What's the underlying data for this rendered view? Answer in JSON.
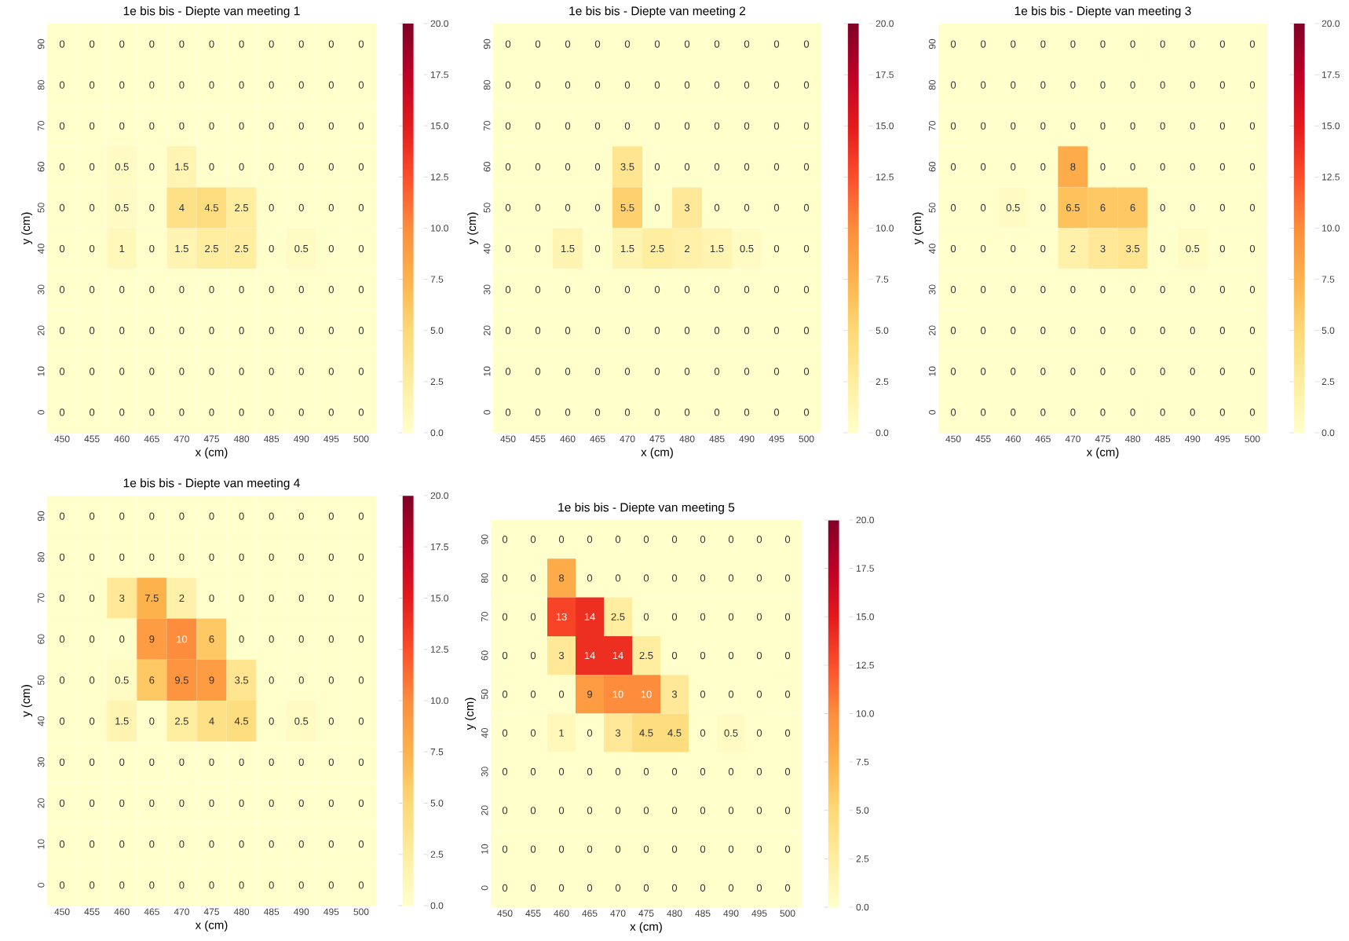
{
  "chart_data": [
    {
      "type": "heatmap",
      "title": "1e bis bis - Diepte van meeting 1",
      "xlabel": "x (cm)",
      "ylabel": "y (cm)",
      "categories": [
        "450",
        "455",
        "460",
        "465",
        "470",
        "475",
        "480",
        "485",
        "490",
        "495",
        "500"
      ],
      "y_categories": [
        "90",
        "80",
        "70",
        "60",
        "50",
        "40",
        "30",
        "20",
        "10",
        "0"
      ],
      "cells": [
        [
          0,
          0,
          0,
          0,
          0,
          0,
          0,
          0,
          0,
          0,
          0
        ],
        [
          0,
          0,
          0,
          0,
          0,
          0,
          0,
          0,
          0,
          0,
          0
        ],
        [
          0,
          0,
          0,
          0,
          0,
          0,
          0,
          0,
          0,
          0,
          0
        ],
        [
          0,
          0,
          0.5,
          0,
          1.5,
          0,
          0,
          0,
          0,
          0,
          0
        ],
        [
          0,
          0,
          0.5,
          0,
          4,
          4.5,
          2.5,
          0,
          0,
          0,
          0
        ],
        [
          0,
          0,
          1,
          0,
          1.5,
          2.5,
          2.5,
          0,
          0.5,
          0,
          0
        ],
        [
          0,
          0,
          0,
          0,
          0,
          0,
          0,
          0,
          0,
          0,
          0
        ],
        [
          0,
          0,
          0,
          0,
          0,
          0,
          0,
          0,
          0,
          0,
          0
        ],
        [
          0,
          0,
          0,
          0,
          0,
          0,
          0,
          0,
          0,
          0,
          0
        ],
        [
          0,
          0,
          0,
          0,
          0,
          0,
          0,
          0,
          0,
          0,
          0
        ]
      ],
      "clim": [
        0,
        20
      ],
      "cticks": [
        {
          "value": 0,
          "label": "0.0"
        },
        {
          "value": 2.5,
          "label": "2.5"
        },
        {
          "value": 5,
          "label": "5.0"
        },
        {
          "value": 7.5,
          "label": "7.5"
        },
        {
          "value": 10,
          "label": "10.0"
        },
        {
          "value": 12.5,
          "label": "12.5"
        },
        {
          "value": 15,
          "label": "15.0"
        },
        {
          "value": 17.5,
          "label": "17.5"
        },
        {
          "value": 20,
          "label": "20.0"
        }
      ],
      "data_labels": true
    },
    {
      "type": "heatmap",
      "title": "1e bis bis - Diepte van meeting 2",
      "xlabel": "x (cm)",
      "ylabel": "y (cm)",
      "categories": [
        "450",
        "455",
        "460",
        "465",
        "470",
        "475",
        "480",
        "485",
        "490",
        "495",
        "500"
      ],
      "y_categories": [
        "90",
        "80",
        "70",
        "60",
        "50",
        "40",
        "30",
        "20",
        "10",
        "0"
      ],
      "cells": [
        [
          0,
          0,
          0,
          0,
          0,
          0,
          0,
          0,
          0,
          0,
          0
        ],
        [
          0,
          0,
          0,
          0,
          0,
          0,
          0,
          0,
          0,
          0,
          0
        ],
        [
          0,
          0,
          0,
          0,
          0,
          0,
          0,
          0,
          0,
          0,
          0
        ],
        [
          0,
          0,
          0,
          0,
          3.5,
          0,
          0,
          0,
          0,
          0,
          0
        ],
        [
          0,
          0,
          0,
          0,
          5.5,
          0,
          3,
          0,
          0,
          0,
          0
        ],
        [
          0,
          0,
          1.5,
          0,
          1.5,
          2.5,
          2,
          1.5,
          0.5,
          0,
          0
        ],
        [
          0,
          0,
          0,
          0,
          0,
          0,
          0,
          0,
          0,
          0,
          0
        ],
        [
          0,
          0,
          0,
          0,
          0,
          0,
          0,
          0,
          0,
          0,
          0
        ],
        [
          0,
          0,
          0,
          0,
          0,
          0,
          0,
          0,
          0,
          0,
          0
        ],
        [
          0,
          0,
          0,
          0,
          0,
          0,
          0,
          0,
          0,
          0,
          0
        ]
      ],
      "clim": [
        0,
        20
      ],
      "cticks": [
        {
          "value": 0,
          "label": "0.0"
        },
        {
          "value": 2.5,
          "label": "2.5"
        },
        {
          "value": 5,
          "label": "5.0"
        },
        {
          "value": 7.5,
          "label": "7.5"
        },
        {
          "value": 10,
          "label": "10.0"
        },
        {
          "value": 12.5,
          "label": "12.5"
        },
        {
          "value": 15,
          "label": "15.0"
        },
        {
          "value": 17.5,
          "label": "17.5"
        },
        {
          "value": 20,
          "label": "20.0"
        }
      ],
      "data_labels": true
    },
    {
      "type": "heatmap",
      "title": "1e bis bis - Diepte van meeting 3",
      "xlabel": "x (cm)",
      "ylabel": "y (cm)",
      "categories": [
        "450",
        "455",
        "460",
        "465",
        "470",
        "475",
        "480",
        "485",
        "490",
        "495",
        "500"
      ],
      "y_categories": [
        "90",
        "80",
        "70",
        "60",
        "50",
        "40",
        "30",
        "20",
        "10",
        "0"
      ],
      "cells": [
        [
          0,
          0,
          0,
          0,
          0,
          0,
          0,
          0,
          0,
          0,
          0
        ],
        [
          0,
          0,
          0,
          0,
          0,
          0,
          0,
          0,
          0,
          0,
          0
        ],
        [
          0,
          0,
          0,
          0,
          0,
          0,
          0,
          0,
          0,
          0,
          0
        ],
        [
          0,
          0,
          0,
          0,
          8,
          0,
          0,
          0,
          0,
          0,
          0
        ],
        [
          0,
          0,
          0.5,
          0,
          6.5,
          6,
          6,
          0,
          0,
          0,
          0
        ],
        [
          0,
          0,
          0,
          0,
          2,
          3,
          3.5,
          0,
          0.5,
          0,
          0
        ],
        [
          0,
          0,
          0,
          0,
          0,
          0,
          0,
          0,
          0,
          0,
          0
        ],
        [
          0,
          0,
          0,
          0,
          0,
          0,
          0,
          0,
          0,
          0,
          0
        ],
        [
          0,
          0,
          0,
          0,
          0,
          0,
          0,
          0,
          0,
          0,
          0
        ],
        [
          0,
          0,
          0,
          0,
          0,
          0,
          0,
          0,
          0,
          0,
          0
        ]
      ],
      "clim": [
        0,
        20
      ],
      "cticks": [
        {
          "value": 0,
          "label": "0.0"
        },
        {
          "value": 2.5,
          "label": "2.5"
        },
        {
          "value": 5,
          "label": "5.0"
        },
        {
          "value": 7.5,
          "label": "7.5"
        },
        {
          "value": 10,
          "label": "10.0"
        },
        {
          "value": 12.5,
          "label": "12.5"
        },
        {
          "value": 15,
          "label": "15.0"
        },
        {
          "value": 17.5,
          "label": "17.5"
        },
        {
          "value": 20,
          "label": "20.0"
        }
      ],
      "data_labels": true
    },
    {
      "type": "heatmap",
      "title": "1e bis bis - Diepte van meeting 4",
      "xlabel": "x (cm)",
      "ylabel": "y (cm)",
      "categories": [
        "450",
        "455",
        "460",
        "465",
        "470",
        "475",
        "480",
        "485",
        "490",
        "495",
        "500"
      ],
      "y_categories": [
        "90",
        "80",
        "70",
        "60",
        "50",
        "40",
        "30",
        "20",
        "10",
        "0"
      ],
      "cells": [
        [
          0,
          0,
          0,
          0,
          0,
          0,
          0,
          0,
          0,
          0,
          0
        ],
        [
          0,
          0,
          0,
          0,
          0,
          0,
          0,
          0,
          0,
          0,
          0
        ],
        [
          0,
          0,
          3,
          7.5,
          2,
          0,
          0,
          0,
          0,
          0,
          0
        ],
        [
          0,
          0,
          0,
          9,
          10,
          6,
          0,
          0,
          0,
          0,
          0
        ],
        [
          0,
          0,
          0.5,
          6,
          9.5,
          9,
          3.5,
          0,
          0,
          0,
          0
        ],
        [
          0,
          0,
          1.5,
          0,
          2.5,
          4,
          4.5,
          0,
          0.5,
          0,
          0
        ],
        [
          0,
          0,
          0,
          0,
          0,
          0,
          0,
          0,
          0,
          0,
          0
        ],
        [
          0,
          0,
          0,
          0,
          0,
          0,
          0,
          0,
          0,
          0,
          0
        ],
        [
          0,
          0,
          0,
          0,
          0,
          0,
          0,
          0,
          0,
          0,
          0
        ],
        [
          0,
          0,
          0,
          0,
          0,
          0,
          0,
          0,
          0,
          0,
          0
        ]
      ],
      "clim": [
        0,
        20
      ],
      "cticks": [
        {
          "value": 0,
          "label": "0.0"
        },
        {
          "value": 2.5,
          "label": "2.5"
        },
        {
          "value": 5,
          "label": "5.0"
        },
        {
          "value": 7.5,
          "label": "7.5"
        },
        {
          "value": 10,
          "label": "10.0"
        },
        {
          "value": 12.5,
          "label": "12.5"
        },
        {
          "value": 15,
          "label": "15.0"
        },
        {
          "value": 17.5,
          "label": "17.5"
        },
        {
          "value": 20,
          "label": "20.0"
        }
      ],
      "data_labels": true
    },
    {
      "type": "heatmap",
      "title": "1e bis bis - Diepte van meeting 5",
      "xlabel": "x (cm)",
      "ylabel": "y (cm)",
      "categories": [
        "450",
        "455",
        "460",
        "465",
        "470",
        "475",
        "480",
        "485",
        "490",
        "495",
        "500"
      ],
      "y_categories": [
        "90",
        "80",
        "70",
        "60",
        "50",
        "40",
        "30",
        "20",
        "10",
        "0"
      ],
      "cells": [
        [
          0,
          0,
          0,
          0,
          0,
          0,
          0,
          0,
          0,
          0,
          0
        ],
        [
          0,
          0,
          8,
          0,
          0,
          0,
          0,
          0,
          0,
          0,
          0
        ],
        [
          0,
          0,
          13,
          14,
          2.5,
          0,
          0,
          0,
          0,
          0,
          0
        ],
        [
          0,
          0,
          3,
          14,
          14,
          2.5,
          0,
          0,
          0,
          0,
          0
        ],
        [
          0,
          0,
          0,
          9,
          10,
          10,
          3,
          0,
          0,
          0,
          0
        ],
        [
          0,
          0,
          1,
          0,
          3,
          4.5,
          4.5,
          0,
          0.5,
          0,
          0
        ],
        [
          0,
          0,
          0,
          0,
          0,
          0,
          0,
          0,
          0,
          0,
          0
        ],
        [
          0,
          0,
          0,
          0,
          0,
          0,
          0,
          0,
          0,
          0,
          0
        ],
        [
          0,
          0,
          0,
          0,
          0,
          0,
          0,
          0,
          0,
          0,
          0
        ],
        [
          0,
          0,
          0,
          0,
          0,
          0,
          0,
          0,
          0,
          0,
          0
        ]
      ],
      "clim": [
        0,
        20
      ],
      "cticks": [
        {
          "value": 0,
          "label": "0.0"
        },
        {
          "value": 2.5,
          "label": "2.5"
        },
        {
          "value": 5,
          "label": "5.0"
        },
        {
          "value": 7.5,
          "label": "7.5"
        },
        {
          "value": 10,
          "label": "10.0"
        },
        {
          "value": 12.5,
          "label": "12.5"
        },
        {
          "value": 15,
          "label": "15.0"
        },
        {
          "value": 17.5,
          "label": "17.5"
        },
        {
          "value": 20,
          "label": "20.0"
        }
      ],
      "data_labels": true
    }
  ]
}
